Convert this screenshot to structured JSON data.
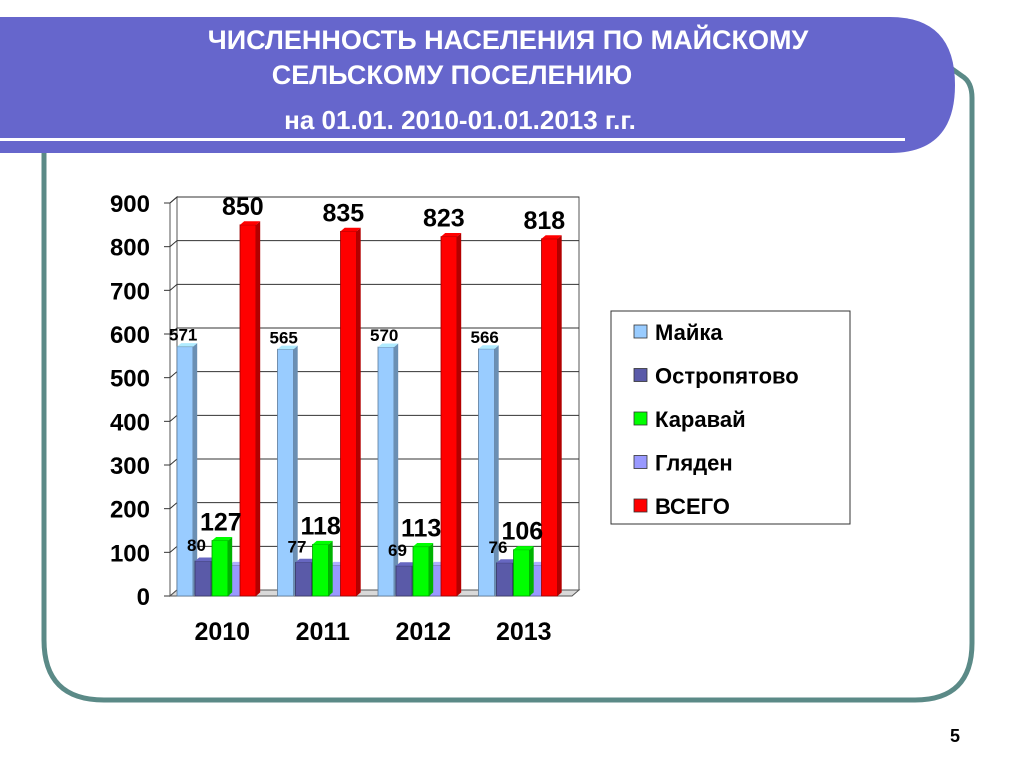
{
  "slide": {
    "title_line1": "ЧИСЛЕННОСТЬ НАСЕЛЕНИЯ ПО МАЙСКОМУ",
    "title_line2": "СЕЛЬСКОМУ ПОСЕЛЕНИЮ",
    "title_line3": "на 01.01.  2010-01.01.2013 г.г.",
    "page_number": "5",
    "colors": {
      "header_fill": "#6666CC",
      "frame_stroke": "#5B8A87"
    }
  },
  "chart_data": {
    "type": "bar",
    "title": "",
    "xlabel": "",
    "ylabel": "",
    "categories": [
      "2010",
      "2011",
      "2012",
      "2013"
    ],
    "ylim": [
      0,
      900
    ],
    "yticks": [
      0,
      100,
      200,
      300,
      400,
      500,
      600,
      700,
      800,
      900
    ],
    "grid": true,
    "legend_position": "right",
    "series": [
      {
        "name": "Майка",
        "values": [
          571,
          565,
          570,
          566
        ],
        "color": "#99CCFF"
      },
      {
        "name": "Остропятово",
        "values": [
          80,
          77,
          69,
          76
        ],
        "color": "#5A5AA8"
      },
      {
        "name": "Каравай",
        "values": [
          127,
          118,
          113,
          106
        ],
        "color": "#00FF00"
      },
      {
        "name": "Гляден",
        "values": [
          70,
          70,
          70,
          70
        ],
        "color": "#9999FF"
      },
      {
        "name": "ВСЕГО",
        "values": [
          850,
          835,
          823,
          818
        ],
        "color": "#FF0000"
      }
    ],
    "data_labels": {
      "Майка": [
        "571",
        "565",
        "570",
        "566"
      ],
      "Остропятово": [
        "80",
        "77",
        "69",
        "76"
      ],
      "Каравай": [
        "127",
        "118",
        "113",
        "106"
      ],
      "ВСЕГО": [
        "850",
        "835",
        "823",
        "818"
      ]
    }
  }
}
